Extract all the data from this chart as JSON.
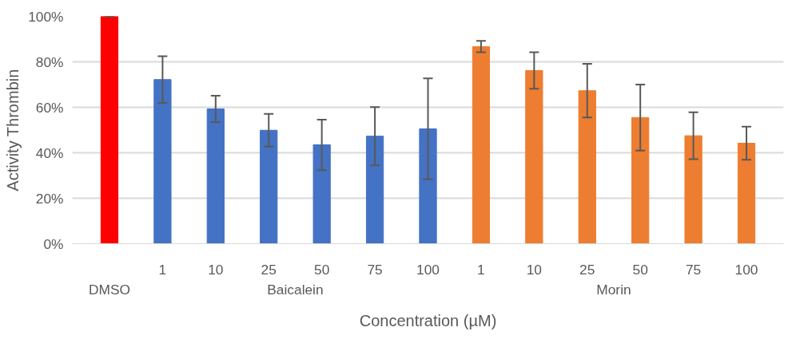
{
  "chart_data": {
    "type": "bar",
    "xlabel": "Concentration (µM)",
    "ylabel": "Activity Thrombin",
    "categories": [
      null,
      "1",
      "10",
      "25",
      "50",
      "75",
      "100",
      "1",
      "10",
      "25",
      "50",
      "75",
      "100"
    ],
    "values": [
      100,
      72.2,
      59.3,
      49.9,
      43.5,
      47.3,
      50.5,
      86.7,
      76.2,
      67.3,
      55.5,
      47.5,
      44.2
    ],
    "errors": [
      0,
      10.3,
      5.8,
      7.2,
      11.1,
      12.8,
      22.2,
      2.5,
      8,
      11.8,
      14.5,
      10.3,
      7.3
    ],
    "colors": [
      "#ff0000",
      "#4472c4",
      "#4472c4",
      "#4472c4",
      "#4472c4",
      "#4472c4",
      "#4472c4",
      "#ed7d31",
      "#ed7d31",
      "#ed7d31",
      "#ed7d31",
      "#ed7d31",
      "#ed7d31"
    ],
    "annotations": [
      "DMSO",
      "Baicalein",
      "Morin"
    ],
    "ylim": [
      0,
      100
    ],
    "yticks": [
      {
        "value": 0,
        "label": "0%"
      },
      {
        "value": 20,
        "label": "20%"
      },
      {
        "value": 40,
        "label": "40%"
      },
      {
        "value": 60,
        "label": "60%"
      },
      {
        "value": 80,
        "label": "80%"
      },
      {
        "value": 100,
        "label": "100%"
      }
    ],
    "grid": "y"
  }
}
